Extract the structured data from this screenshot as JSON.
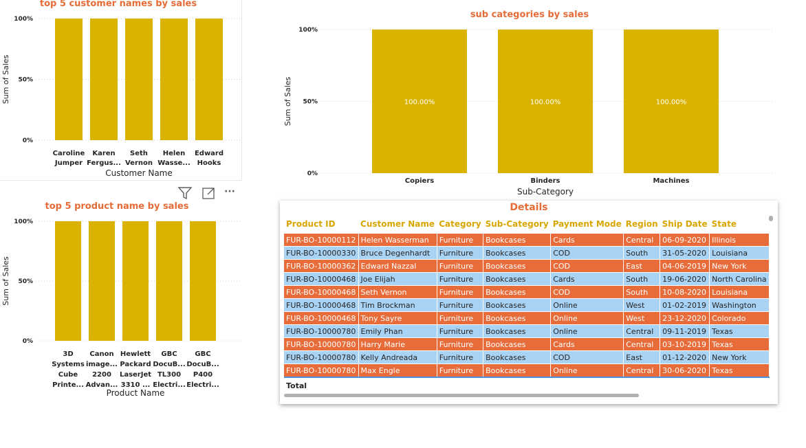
{
  "colors": {
    "bar": "#d9b300",
    "title": "#e66c37",
    "row_orange": "#e86c3a",
    "row_blue": "#a9d3f5",
    "header": "#d8a600"
  },
  "toolbar": {
    "icons": [
      "filter-icon",
      "focus-mode-icon",
      "more-options-icon"
    ],
    "more_label": "···"
  },
  "chart_data": [
    {
      "type": "bar",
      "title": "top 5 customer names by sales",
      "xlabel": "Customer Name",
      "ylabel": "Sum of Sales",
      "ylim": [
        0,
        100
      ],
      "yticks": [
        "0%",
        "50%",
        "100%"
      ],
      "grid": true,
      "categories": [
        [
          "Caroline",
          "Jumper"
        ],
        [
          "Karen",
          "Fergus..."
        ],
        [
          "Seth",
          "Vernon"
        ],
        [
          "Helen",
          "Wasse..."
        ],
        [
          "Edward",
          "Hooks"
        ]
      ],
      "values": [
        100,
        100,
        100,
        100,
        100
      ]
    },
    {
      "type": "bar",
      "title": "sub categories by sales",
      "xlabel": "Sub-Category",
      "ylabel": "Sum of Sales",
      "ylim": [
        0,
        100
      ],
      "yticks": [
        "0%",
        "50%",
        "100%"
      ],
      "grid": true,
      "categories": [
        "Copiers",
        "Binders",
        "Machines"
      ],
      "values": [
        100,
        100,
        100
      ],
      "data_labels": [
        "100.00%",
        "100.00%",
        "100.00%"
      ]
    },
    {
      "type": "bar",
      "title": "top 5 product name by sales",
      "xlabel": "Product Name",
      "ylabel": "Sum of Sales",
      "ylim": [
        0,
        100
      ],
      "yticks": [
        "0%",
        "50%",
        "100%"
      ],
      "grid": true,
      "categories": [
        [
          "3D",
          "Systems",
          "Cube",
          "Printe..."
        ],
        [
          "Canon",
          "image...",
          "2200",
          "Advan..."
        ],
        [
          "Hewlett",
          "Packard",
          "LaserJet",
          "3310 ..."
        ],
        [
          "GBC",
          "DocuB...",
          "TL300",
          "Electri..."
        ],
        [
          "GBC",
          "DocuB...",
          "P400",
          "Electri..."
        ]
      ],
      "values": [
        100,
        100,
        100,
        100,
        100
      ]
    }
  ],
  "details": {
    "title": "Details",
    "columns": [
      "Product ID",
      "Customer Name",
      "Category",
      "Sub-Category",
      "Payment Mode",
      "Region",
      "Ship Date",
      "State"
    ],
    "rows": [
      [
        "FUR-BO-10000112",
        "Helen Wasserman",
        "Furniture",
        "Bookcases",
        "Cards",
        "Central",
        "06-09-2020",
        "Illinois"
      ],
      [
        "FUR-BO-10000330",
        "Bruce Degenhardt",
        "Furniture",
        "Bookcases",
        "COD",
        "South",
        "31-05-2020",
        "Louisiana"
      ],
      [
        "FUR-BO-10000362",
        "Edward Nazzal",
        "Furniture",
        "Bookcases",
        "COD",
        "East",
        "04-06-2019",
        "New York"
      ],
      [
        "FUR-BO-10000468",
        "Joe Elijah",
        "Furniture",
        "Bookcases",
        "Cards",
        "South",
        "19-06-2020",
        "North Carolina"
      ],
      [
        "FUR-BO-10000468",
        "Seth Vernon",
        "Furniture",
        "Bookcases",
        "COD",
        "South",
        "10-08-2020",
        "Louisiana"
      ],
      [
        "FUR-BO-10000468",
        "Tim Brockman",
        "Furniture",
        "Bookcases",
        "Online",
        "West",
        "01-02-2019",
        "Washington"
      ],
      [
        "FUR-BO-10000468",
        "Tony Sayre",
        "Furniture",
        "Bookcases",
        "Online",
        "West",
        "23-12-2020",
        "Colorado"
      ],
      [
        "FUR-BO-10000780",
        "Emily Phan",
        "Furniture",
        "Bookcases",
        "Online",
        "Central",
        "09-11-2019",
        "Texas"
      ],
      [
        "FUR-BO-10000780",
        "Harry Marie",
        "Furniture",
        "Bookcases",
        "Cards",
        "Central",
        "03-10-2019",
        "Texas"
      ],
      [
        "FUR-BO-10000780",
        "Kelly Andreada",
        "Furniture",
        "Bookcases",
        "COD",
        "East",
        "01-12-2020",
        "New York"
      ],
      [
        "FUR-BO-10000780",
        "Max Engle",
        "Furniture",
        "Bookcases",
        "Online",
        "Central",
        "30-06-2020",
        "Texas"
      ]
    ],
    "total_label": "Total"
  }
}
